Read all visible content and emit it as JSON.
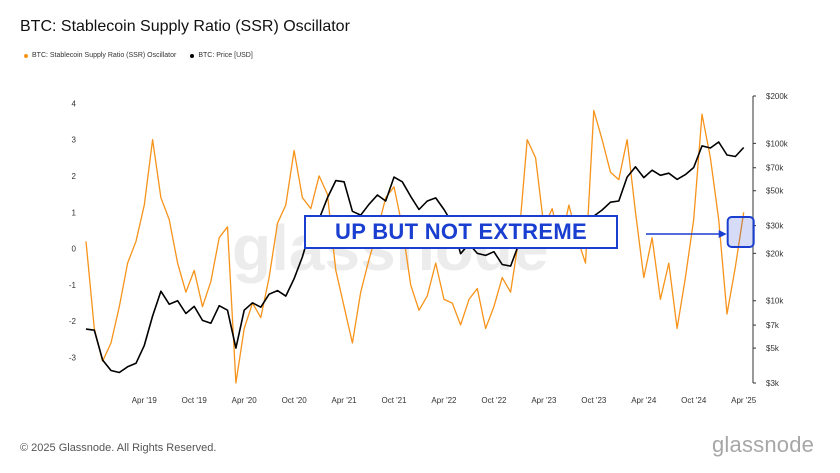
{
  "title": "BTC: Stablecoin Supply Ratio (SSR) Oscillator",
  "legend": [
    {
      "label": "BTC: Stablecoin Supply Ratio (SSR) Oscillator",
      "color": "#f7931a"
    },
    {
      "label": "BTC: Price [USD]",
      "color": "#000000"
    }
  ],
  "callout_text": "UP BUT NOT EXTREME",
  "footer": "© 2025 Glassnode. All Rights Reserved.",
  "brand": "glassnode",
  "watermark": "glassnode",
  "colors": {
    "ssr": "#f7931a",
    "price": "#000000",
    "callout": "#1a3fd0"
  },
  "chart_data": {
    "type": "line",
    "title": "BTC: Stablecoin Supply Ratio (SSR) Oscillator",
    "x_ticks": [
      "Apr '19",
      "Oct '19",
      "Apr '20",
      "Oct '20",
      "Apr '21",
      "Oct '21",
      "Apr '22",
      "Oct '22",
      "Apr '23",
      "Oct '23",
      "Apr '24",
      "Oct '24",
      "Apr '25"
    ],
    "y_left": {
      "ticks": [
        "-3",
        "-2",
        "-1",
        "0",
        "1",
        "2",
        "3",
        "4"
      ],
      "range": [
        -3.7,
        4.2
      ]
    },
    "y_right": {
      "ticks": [
        "$3k",
        "$5k",
        "$7k",
        "$10k",
        "$20k",
        "$30k",
        "$50k",
        "$70k",
        "$100k",
        "$200k"
      ],
      "scale": "log",
      "range": [
        3000,
        200000
      ]
    },
    "grid": false,
    "legend_position": "top-left",
    "series": [
      {
        "name": "BTC: Stablecoin Supply Ratio (SSR) Oscillator",
        "axis": "left",
        "x": [
          "2018-09",
          "2018-10",
          "2018-11",
          "2018-12",
          "2019-01",
          "2019-02",
          "2019-03",
          "2019-04",
          "2019-05",
          "2019-06",
          "2019-07",
          "2019-08",
          "2019-09",
          "2019-10",
          "2019-11",
          "2019-12",
          "2020-01",
          "2020-02",
          "2020-03",
          "2020-04",
          "2020-05",
          "2020-06",
          "2020-07",
          "2020-08",
          "2020-09",
          "2020-10",
          "2020-11",
          "2020-12",
          "2021-01",
          "2021-02",
          "2021-03",
          "2021-04",
          "2021-05",
          "2021-06",
          "2021-07",
          "2021-08",
          "2021-09",
          "2021-10",
          "2021-11",
          "2021-12",
          "2022-01",
          "2022-02",
          "2022-03",
          "2022-04",
          "2022-05",
          "2022-06",
          "2022-07",
          "2022-08",
          "2022-09",
          "2022-10",
          "2022-11",
          "2022-12",
          "2023-01",
          "2023-02",
          "2023-03",
          "2023-04",
          "2023-05",
          "2023-06",
          "2023-07",
          "2023-08",
          "2023-09",
          "2023-10",
          "2023-11",
          "2023-12",
          "2024-01",
          "2024-02",
          "2024-03",
          "2024-04",
          "2024-05",
          "2024-06",
          "2024-07",
          "2024-08",
          "2024-09",
          "2024-10",
          "2024-11",
          "2024-12",
          "2025-01",
          "2025-02",
          "2025-03",
          "2025-04"
        ],
        "y": [
          0.2,
          -2.2,
          -3.1,
          -2.6,
          -1.6,
          -0.4,
          0.2,
          1.2,
          3.0,
          1.4,
          0.8,
          -0.4,
          -1.2,
          -0.6,
          -1.6,
          -0.9,
          0.3,
          0.6,
          -3.7,
          -2.2,
          -1.5,
          -1.9,
          -0.8,
          0.7,
          1.2,
          2.7,
          1.4,
          1.1,
          2.0,
          1.5,
          -0.6,
          -1.6,
          -2.6,
          -1.2,
          -0.3,
          0.5,
          1.4,
          1.7,
          0.6,
          -1.0,
          -1.7,
          -1.3,
          -0.4,
          -1.4,
          -1.5,
          -2.1,
          -1.4,
          -1.1,
          -2.2,
          -1.6,
          -0.8,
          -1.2,
          0.3,
          3.0,
          2.5,
          0.6,
          1.1,
          0.1,
          1.2,
          0.3,
          -0.4,
          3.8,
          3.0,
          2.1,
          1.9,
          3.0,
          1.0,
          -0.8,
          0.3,
          -1.4,
          -0.4,
          -2.2,
          -0.8,
          0.8,
          3.7,
          2.5,
          0.8,
          -1.8,
          -0.5,
          1.0
        ]
      },
      {
        "name": "BTC: Price [USD]",
        "axis": "right",
        "x": [
          "2018-09",
          "2018-10",
          "2018-11",
          "2018-12",
          "2019-01",
          "2019-02",
          "2019-03",
          "2019-04",
          "2019-05",
          "2019-06",
          "2019-07",
          "2019-08",
          "2019-09",
          "2019-10",
          "2019-11",
          "2019-12",
          "2020-01",
          "2020-02",
          "2020-03",
          "2020-04",
          "2020-05",
          "2020-06",
          "2020-07",
          "2020-08",
          "2020-09",
          "2020-10",
          "2020-11",
          "2020-12",
          "2021-01",
          "2021-02",
          "2021-03",
          "2021-04",
          "2021-05",
          "2021-06",
          "2021-07",
          "2021-08",
          "2021-09",
          "2021-10",
          "2021-11",
          "2021-12",
          "2022-01",
          "2022-02",
          "2022-03",
          "2022-04",
          "2022-05",
          "2022-06",
          "2022-07",
          "2022-08",
          "2022-09",
          "2022-10",
          "2022-11",
          "2022-12",
          "2023-01",
          "2023-02",
          "2023-03",
          "2023-04",
          "2023-05",
          "2023-06",
          "2023-07",
          "2023-08",
          "2023-09",
          "2023-10",
          "2023-11",
          "2023-12",
          "2024-01",
          "2024-02",
          "2024-03",
          "2024-04",
          "2024-05",
          "2024-06",
          "2024-07",
          "2024-08",
          "2024-09",
          "2024-10",
          "2024-11",
          "2024-12",
          "2025-01",
          "2025-02",
          "2025-03",
          "2025-04"
        ],
        "y": [
          6600,
          6500,
          4200,
          3600,
          3500,
          3800,
          4000,
          5200,
          8000,
          11500,
          9500,
          10000,
          8300,
          9200,
          7500,
          7200,
          9300,
          8700,
          5000,
          8700,
          9700,
          9100,
          11000,
          11600,
          10700,
          13800,
          19000,
          29000,
          33000,
          45000,
          58000,
          57000,
          37000,
          35000,
          41000,
          47000,
          43000,
          61000,
          57000,
          46000,
          38000,
          43000,
          45000,
          38000,
          31000,
          19900,
          23000,
          20000,
          19400,
          20500,
          17000,
          16600,
          23000,
          23500,
          28000,
          29300,
          27000,
          30500,
          29200,
          26000,
          27000,
          34500,
          37700,
          42300,
          43000,
          61000,
          71000,
          60600,
          67500,
          62700,
          64600,
          59000,
          63300,
          70200,
          96400,
          93400,
          102000,
          84300,
          82500,
          94200
        ]
      }
    ]
  }
}
